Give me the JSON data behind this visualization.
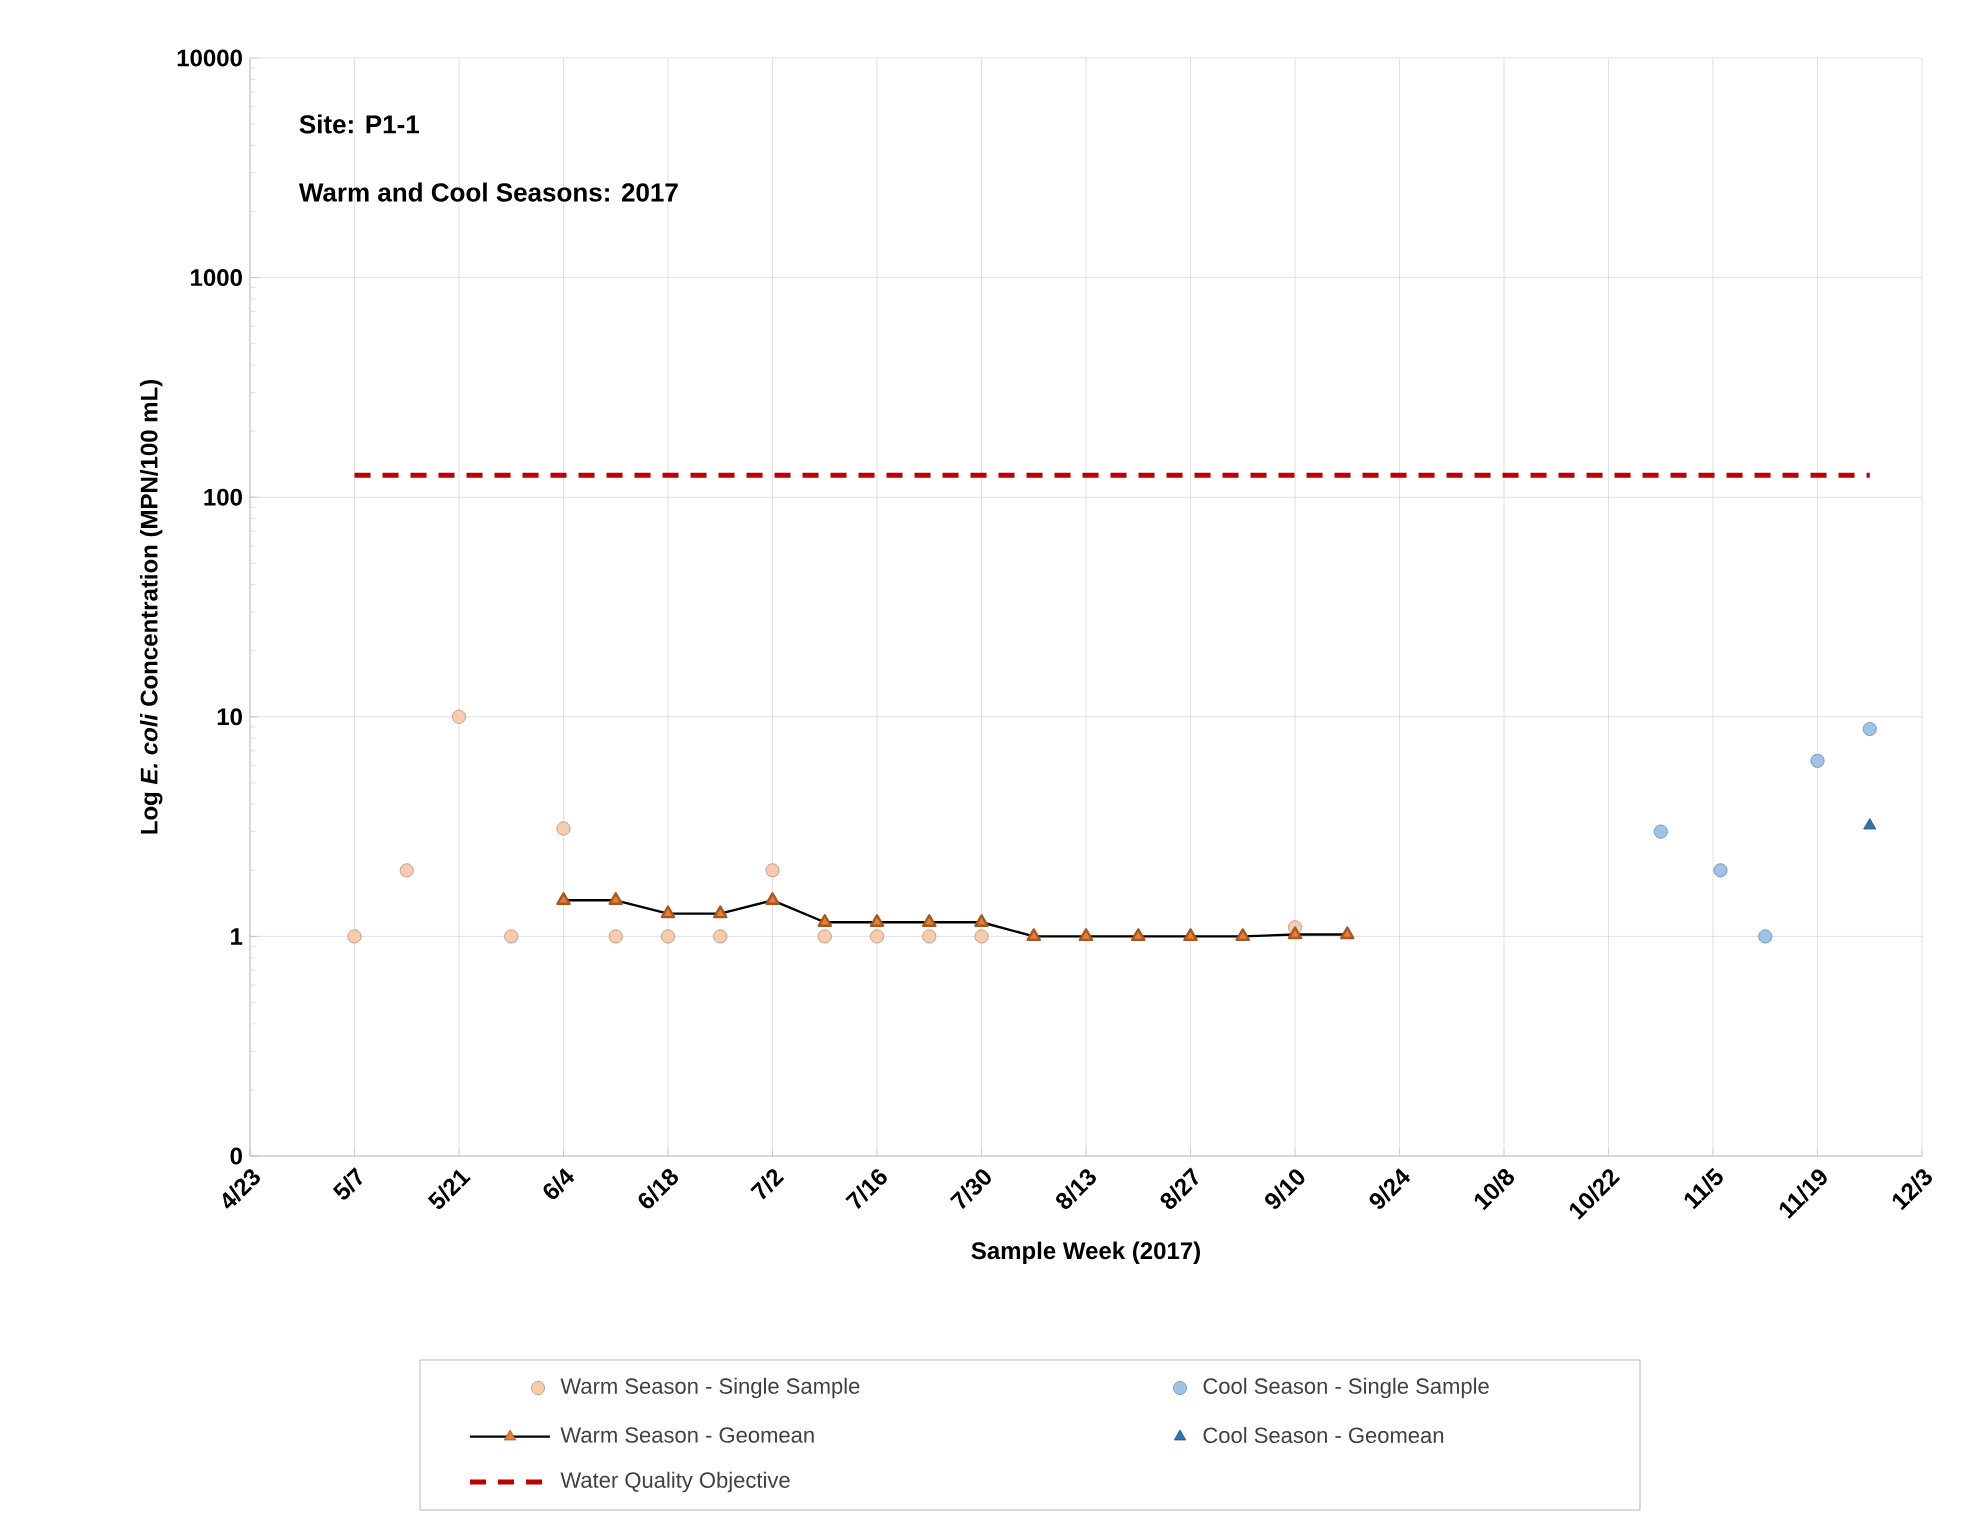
{
  "chart_data": {
    "type": "scatter",
    "xlabel": "Sample Week (2017)",
    "ylabel": "Log *E. coli* Concentration (MPN/100 mL)",
    "annotations": [
      "Site: P1-1",
      "Warm and Cool Seasons: 2017"
    ],
    "log": "y",
    "grid": true,
    "legend": "bottom",
    "xlim": [
      "2017-04-23",
      "2017-12-03"
    ],
    "xticks": [
      {
        "value": "2017-04-23",
        "label": "4/23"
      },
      {
        "value": "2017-05-07",
        "label": "5/7"
      },
      {
        "value": "2017-05-21",
        "label": "5/21"
      },
      {
        "value": "2017-06-04",
        "label": "6/4"
      },
      {
        "value": "2017-06-18",
        "label": "6/18"
      },
      {
        "value": "2017-07-02",
        "label": "7/2"
      },
      {
        "value": "2017-07-16",
        "label": "7/16"
      },
      {
        "value": "2017-07-30",
        "label": "7/30"
      },
      {
        "value": "2017-08-13",
        "label": "8/13"
      },
      {
        "value": "2017-08-27",
        "label": "8/27"
      },
      {
        "value": "2017-09-10",
        "label": "9/10"
      },
      {
        "value": "2017-09-24",
        "label": "9/24"
      },
      {
        "value": "2017-10-08",
        "label": "10/8"
      },
      {
        "value": "2017-10-22",
        "label": "10/22"
      },
      {
        "value": "2017-11-05",
        "label": "11/5"
      },
      {
        "value": "2017-11-19",
        "label": "11/19"
      },
      {
        "value": "2017-12-03",
        "label": "12/3"
      }
    ],
    "ylim": [
      0.1,
      10000
    ],
    "yticks": [
      {
        "value": 0.1,
        "label": "0"
      },
      1,
      10,
      100,
      1000,
      10000
    ],
    "series": [
      {
        "name": "Warm Season - Single Sample",
        "type": "scatter",
        "marker": "circle",
        "color": "#f8cbad",
        "x": [
          "2017-05-07",
          "2017-05-14",
          "2017-05-21",
          "2017-05-28",
          "2017-06-04",
          "2017-06-11",
          "2017-06-18",
          "2017-06-25",
          "2017-07-02",
          "2017-07-09",
          "2017-07-16",
          "2017-07-23",
          "2017-07-30",
          "2017-09-10"
        ],
        "values": [
          1,
          2,
          10,
          1,
          3.1,
          1,
          1,
          1,
          2,
          1,
          1,
          1,
          1,
          1.1
        ]
      },
      {
        "name": "Cool Season - Single Sample",
        "type": "scatter",
        "marker": "circle",
        "color": "#9dc3e6",
        "x": [
          "2017-10-29",
          "2017-11-06",
          "2017-11-12",
          "2017-11-19",
          "2017-11-26"
        ],
        "values": [
          3,
          2,
          1,
          6.3,
          8.8
        ]
      },
      {
        "name": "Warm Season - Geomean",
        "type": "line",
        "marker": "triangle",
        "color": "#ed7d31",
        "x": [
          "2017-06-04",
          "2017-06-11",
          "2017-06-18",
          "2017-06-25",
          "2017-07-02",
          "2017-07-09",
          "2017-07-16",
          "2017-07-23",
          "2017-07-30",
          "2017-08-06",
          "2017-08-13",
          "2017-08-20",
          "2017-08-27",
          "2017-09-03",
          "2017-09-10",
          "2017-09-17"
        ],
        "values": [
          1.46,
          1.46,
          1.27,
          1.27,
          1.46,
          1.16,
          1.16,
          1.16,
          1.16,
          1,
          1,
          1,
          1,
          1,
          1.02,
          1.02
        ]
      },
      {
        "name": "Cool Season - Geomean",
        "type": "scatter",
        "marker": "triangle",
        "color": "#2e75b6",
        "x": [
          "2017-11-26"
        ],
        "values": [
          3.2
        ]
      },
      {
        "name": "Water Quality Objective",
        "type": "line",
        "marker": "none",
        "line_style": "dashed",
        "color": "#c00000",
        "x": [
          "2017-05-07",
          "2017-11-26"
        ],
        "values": [
          126,
          126
        ]
      }
    ]
  }
}
